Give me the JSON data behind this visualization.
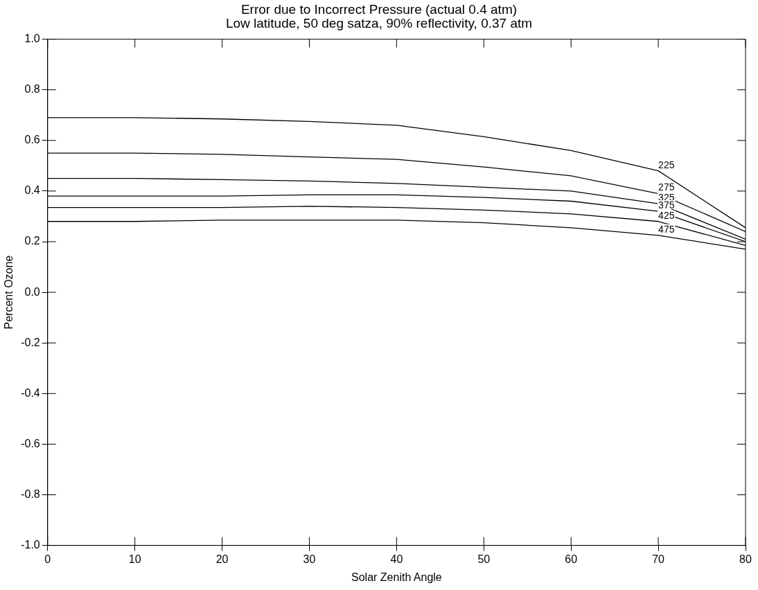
{
  "chart_data": {
    "type": "line",
    "title": "Error due to Incorrect Pressure (actual 0.4 atm)",
    "subtitle": "Low latitude, 50 deg satza, 90% reflectivity, 0.37 atm",
    "xlabel": "Solar Zenith Angle",
    "ylabel": "Percent Ozone",
    "x": [
      0,
      10,
      20,
      30,
      40,
      50,
      60,
      70,
      80
    ],
    "series": [
      {
        "name": "225",
        "color": "#000000",
        "values": [
          0.69,
          0.69,
          0.685,
          0.675,
          0.66,
          0.615,
          0.56,
          0.48,
          0.255
        ]
      },
      {
        "name": "275",
        "color": "#000000",
        "values": [
          0.55,
          0.55,
          0.545,
          0.535,
          0.525,
          0.495,
          0.46,
          0.39,
          0.24
        ]
      },
      {
        "name": "325",
        "color": "#000000",
        "values": [
          0.45,
          0.45,
          0.445,
          0.44,
          0.43,
          0.415,
          0.4,
          0.35,
          0.21
        ]
      },
      {
        "name": "375",
        "color": "#000000",
        "values": [
          0.38,
          0.38,
          0.38,
          0.385,
          0.385,
          0.375,
          0.36,
          0.32,
          0.2
        ]
      },
      {
        "name": "425",
        "color": "#000000",
        "values": [
          0.335,
          0.335,
          0.335,
          0.34,
          0.335,
          0.325,
          0.31,
          0.28,
          0.185
        ]
      },
      {
        "name": "475",
        "color": "#000000",
        "values": [
          0.28,
          0.28,
          0.285,
          0.285,
          0.285,
          0.275,
          0.255,
          0.225,
          0.17
        ]
      }
    ],
    "xlim": [
      0,
      80
    ],
    "xticks": [
      0,
      10,
      20,
      30,
      40,
      50,
      60,
      70,
      80
    ],
    "ylim": [
      -1,
      1
    ],
    "yticks": [
      {
        "value": -1,
        "label": "-1.0"
      },
      -0.8,
      -0.6,
      -0.4,
      -0.2,
      {
        "value": 0,
        "label": "0.0"
      },
      0.2,
      0.4,
      0.6,
      0.8,
      {
        "value": 1,
        "label": "1.0"
      }
    ],
    "grid": false,
    "legend": false,
    "marker": "none",
    "line_style": "solid"
  }
}
